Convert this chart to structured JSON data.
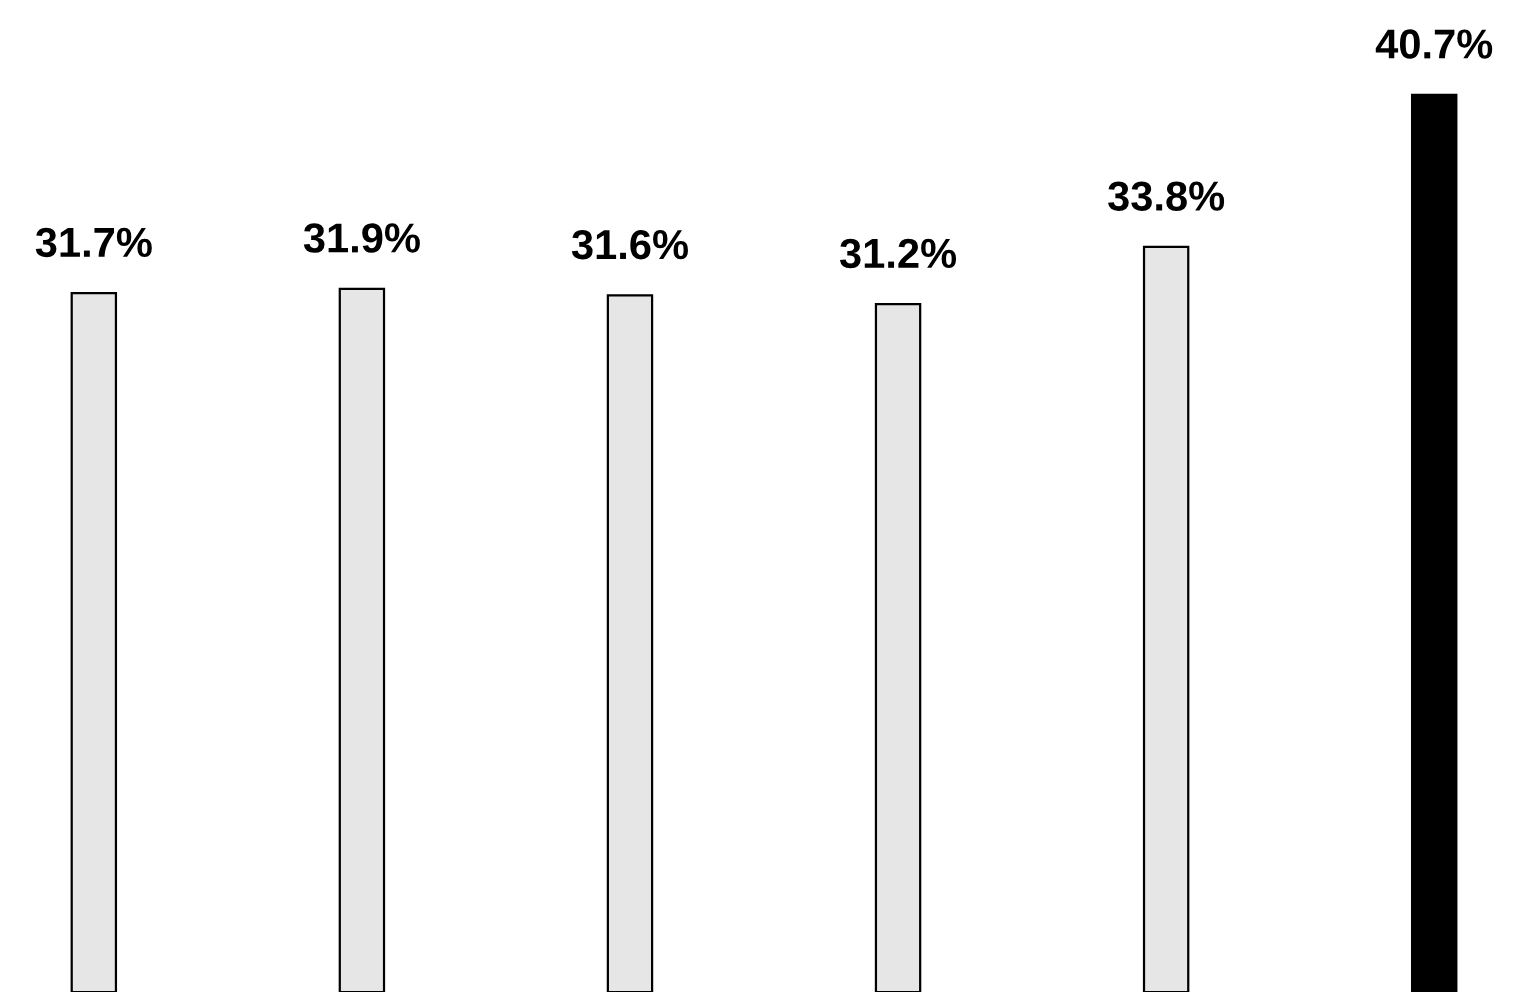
{
  "chart_data": {
    "type": "bar",
    "categories": [
      null,
      null,
      null,
      null,
      null,
      null
    ],
    "values": [
      31.7,
      31.9,
      31.6,
      31.2,
      33.8,
      40.7
    ],
    "colors": [
      "#e6e6e6",
      "#e6e6e6",
      "#e6e6e6",
      "#e6e6e6",
      "#e6e6e6",
      "#000000"
    ],
    "value_labels": [
      "31.7%",
      "31.9%",
      "31.6%",
      "31.2%",
      "33.8%",
      "40.7%"
    ],
    "ylim": [
      0,
      45
    ],
    "grid": false,
    "legend": false
  }
}
